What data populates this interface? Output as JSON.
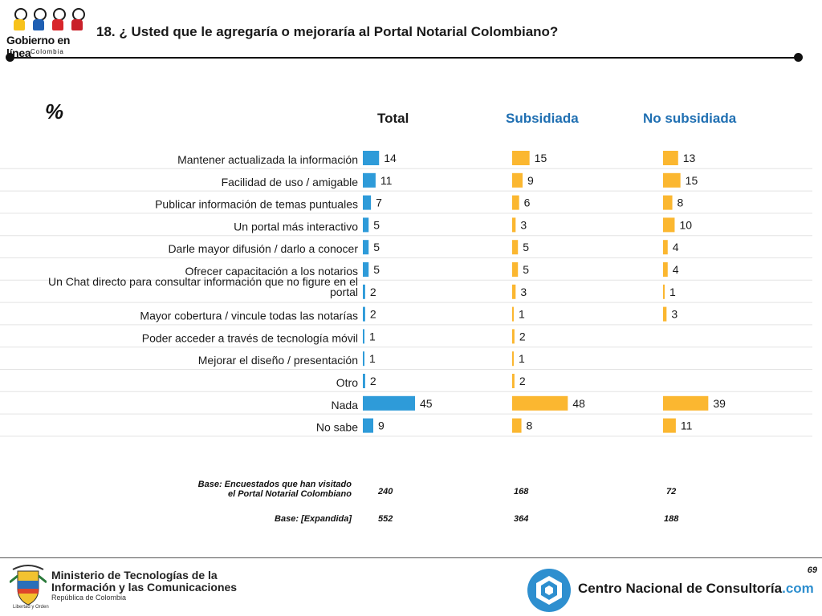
{
  "header": {
    "brand_logo_text": "Gobierno en línea",
    "brand_logo_sub": "Colombia",
    "title": "18. ¿ Usted que le agregaría o mejoraría al Portal Notarial Colombiano?"
  },
  "unit_label": "%",
  "colors": {
    "total": "#2e9bd9",
    "segment": "#fbb730",
    "subsidiada_head": "#1f6fb2",
    "no_subsidiada_head": "#1f6fb2",
    "total_head": "#1a1a1a"
  },
  "chart_data": {
    "type": "bar",
    "orientation": "horizontal",
    "categories": [
      "Mantener actualizada la información",
      "Facilidad de uso / amigable",
      "Publicar información de temas puntuales",
      "Un portal más interactivo",
      "Darle mayor difusión / darlo a conocer",
      "Ofrecer capacitación a los notarios",
      "Un Chat directo para consultar información que no figure en el portal",
      "Mayor cobertura / vincule todas las notarías",
      "Poder acceder a través de tecnología móvil",
      "Mejorar el diseño / presentación",
      "Otro",
      "Nada",
      "No sabe"
    ],
    "series": [
      {
        "name": "Total",
        "values": [
          14,
          11,
          7,
          5,
          5,
          5,
          2,
          2,
          1,
          1,
          2,
          45,
          9
        ]
      },
      {
        "name": "Subsidiada",
        "values": [
          15,
          9,
          6,
          3,
          5,
          5,
          3,
          1,
          2,
          1,
          2,
          48,
          8
        ]
      },
      {
        "name": "No subsidiada",
        "values": [
          13,
          15,
          8,
          10,
          4,
          4,
          1,
          3,
          null,
          null,
          null,
          39,
          11
        ]
      }
    ],
    "xlim": [
      0,
      50
    ]
  },
  "bases": {
    "row1_label": "Base: Encuestados que han visitado el Portal Notarial Colombiano",
    "row1_label_line1": "Base: Encuestados que han visitado",
    "row1_label_line2": "el Portal Notarial Colombiano",
    "row1_values": [
      "240",
      "168",
      "72"
    ],
    "row2_label": "Base: [Expandida]",
    "row2_values": [
      "552",
      "364",
      "188"
    ]
  },
  "footer": {
    "ministry_line1": "Ministerio de Tecnologías de la",
    "ministry_line2": "Información y las Comunicaciones",
    "ministry_line3": "República de Colombia",
    "motto": "Libertad y Orden",
    "cnc_name": "Centro Nacional de Consultoría",
    "cnc_domain": ".com",
    "page_number": "69"
  }
}
